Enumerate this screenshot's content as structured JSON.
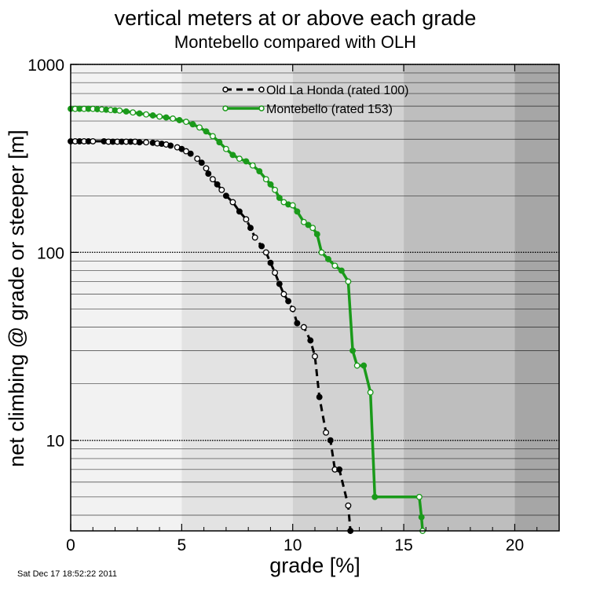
{
  "chart_data": {
    "type": "line",
    "title": "vertical meters at or above each grade",
    "subtitle": "Montebello compared with OLH",
    "xlabel": "grade [%]",
    "ylabel": "net climbing @ grade or steeper [m]",
    "xlim": [
      0,
      22
    ],
    "ylim": [
      3.3,
      1000
    ],
    "y_scale": "log",
    "x_ticks": [
      "0",
      "5",
      "10",
      "15",
      "20"
    ],
    "y_ticks": [
      "10",
      "100",
      "1000"
    ],
    "grid": "horizontal",
    "background_bands": [
      {
        "from": 0,
        "to": 5,
        "color": "#f2f2f2"
      },
      {
        "from": 5,
        "to": 10,
        "color": "#e3e3e3"
      },
      {
        "from": 10,
        "to": 15,
        "color": "#d2d2d2"
      },
      {
        "from": 15,
        "to": 20,
        "color": "#bebebe"
      },
      {
        "from": 20,
        "to": 22,
        "color": "#a6a6a6"
      }
    ],
    "legend_position": "top-center",
    "timestamp": "Sat Dec 17 18:52:22 2011",
    "series": [
      {
        "name": "Old La Honda (rated 100)",
        "color": "#000000",
        "line": "dashed",
        "x": [
          0,
          0.2,
          0.4,
          0.6,
          0.8,
          1.0,
          1.5,
          1.7,
          1.9,
          2.1,
          2.3,
          2.5,
          2.7,
          2.9,
          3.1,
          3.4,
          3.7,
          3.9,
          4.1,
          4.3,
          4.5,
          4.8,
          5.0,
          5.2,
          5.4,
          5.7,
          5.9,
          6.1,
          6.2,
          6.4,
          6.6,
          6.8,
          7.0,
          7.3,
          7.6,
          7.9,
          8.1,
          8.3,
          8.6,
          8.8,
          9.0,
          9.2,
          9.4,
          9.6,
          9.8,
          10.0,
          10.2,
          10.5,
          10.8,
          11.0,
          11.2,
          11.5,
          11.7,
          11.9,
          12.1,
          12.5,
          12.6
        ],
        "y": [
          390,
          390,
          390,
          390,
          390,
          390,
          390,
          388,
          388,
          388,
          388,
          388,
          388,
          388,
          385,
          385,
          383,
          380,
          378,
          375,
          370,
          362,
          355,
          345,
          335,
          315,
          300,
          280,
          262,
          245,
          230,
          215,
          200,
          185,
          165,
          150,
          135,
          120,
          108,
          100,
          88,
          78,
          68,
          60,
          55,
          50,
          42,
          40,
          34,
          28,
          17,
          11,
          10,
          7,
          7,
          4.5,
          3.3
        ]
      },
      {
        "name": "Montebello (rated 153)",
        "color": "#1a9a1a",
        "line": "solid",
        "x": [
          0,
          0.2,
          0.4,
          0.6,
          0.8,
          1.0,
          1.2,
          1.4,
          1.6,
          1.8,
          2.0,
          2.2,
          2.5,
          2.8,
          3.1,
          3.4,
          3.7,
          4.0,
          4.3,
          4.6,
          4.9,
          5.2,
          5.5,
          5.8,
          6.1,
          6.4,
          6.7,
          7.0,
          7.3,
          7.6,
          7.9,
          8.2,
          8.5,
          8.8,
          9.0,
          9.2,
          9.4,
          9.6,
          9.8,
          10.0,
          10.2,
          10.5,
          10.7,
          10.9,
          11.1,
          11.3,
          11.6,
          11.9,
          12.2,
          12.5,
          12.7,
          12.9,
          13.2,
          13.5,
          13.7,
          15.7,
          15.8,
          15.85
        ],
        "y": [
          580,
          580,
          580,
          580,
          580,
          580,
          578,
          576,
          574,
          572,
          570,
          568,
          562,
          555,
          548,
          542,
          535,
          528,
          522,
          515,
          505,
          495,
          480,
          462,
          440,
          415,
          385,
          355,
          330,
          315,
          305,
          290,
          270,
          245,
          230,
          215,
          195,
          185,
          180,
          178,
          165,
          145,
          140,
          135,
          125,
          100,
          92,
          85,
          80,
          70,
          30,
          25,
          25,
          18,
          5,
          5,
          3.9,
          3.3
        ]
      }
    ]
  }
}
